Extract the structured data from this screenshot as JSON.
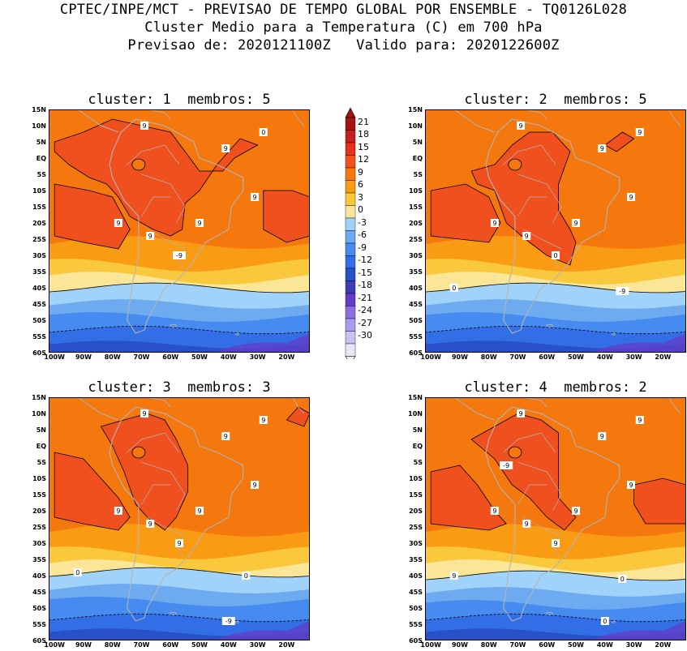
{
  "header": {
    "line1": "CPTEC/INPE/MCT - PREVISAO DE TEMPO GLOBAL POR ENSEMBLE - TQ0126L028",
    "line2": "Cluster Medio para a Temperatura (C) em 700 hPa",
    "line3": "Previsao de: 2020121100Z   Valido para: 2020122600Z"
  },
  "panels": [
    {
      "title": "cluster: 1  membros: 5",
      "variant": 1,
      "labels": [
        "9",
        "9",
        "9",
        "9",
        "9",
        "9",
        "0",
        "-9"
      ]
    },
    {
      "title": "cluster: 2  membros: 5",
      "variant": 2,
      "labels": [
        "9",
        "9",
        "9",
        "9",
        "9",
        "9",
        "9",
        "0",
        "0",
        "-9"
      ]
    },
    {
      "title": "cluster: 3  membros: 3",
      "variant": 3,
      "labels": [
        "9",
        "9",
        "9",
        "9",
        "9",
        "9",
        "9",
        "9",
        "0",
        "0",
        "-9"
      ]
    },
    {
      "title": "cluster: 4  membros: 2",
      "variant": 4,
      "labels": [
        "9",
        "9",
        "9",
        "9",
        "9",
        "9",
        "9",
        "9",
        "9",
        "0",
        "0",
        "-9"
      ]
    }
  ],
  "axes": {
    "lat_labels": [
      "15N",
      "10N",
      "5N",
      "EQ",
      "5S",
      "10S",
      "15S",
      "20S",
      "25S",
      "30S",
      "35S",
      "40S",
      "45S",
      "50S",
      "55S",
      "60S"
    ],
    "lon_labels": [
      "100W",
      "90W",
      "80W",
      "70W",
      "60W",
      "50W",
      "40W",
      "30W",
      "20W"
    ]
  },
  "colorbar": {
    "labels": [
      "21",
      "18",
      "15",
      "12",
      "9",
      "6",
      "3",
      "0",
      "-3",
      "-6",
      "-9",
      "-12",
      "-15",
      "-18",
      "-21",
      "-24",
      "-27",
      "-30"
    ],
    "colors": [
      "#a01414",
      "#c81e1e",
      "#e6321e",
      "#f0501e",
      "#f5780f",
      "#fa9b14",
      "#fac83c",
      "#fae696",
      "#a0d2fa",
      "#6eaaf0",
      "#468cf0",
      "#326ee6",
      "#2850c8",
      "#3c3cb4",
      "#643cc8",
      "#8c6ee1",
      "#aa9bf0",
      "#c8c3f5",
      "#e6e6fa"
    ],
    "min_cap": "#f0f0fa",
    "max_cap": "#a01414"
  }
}
